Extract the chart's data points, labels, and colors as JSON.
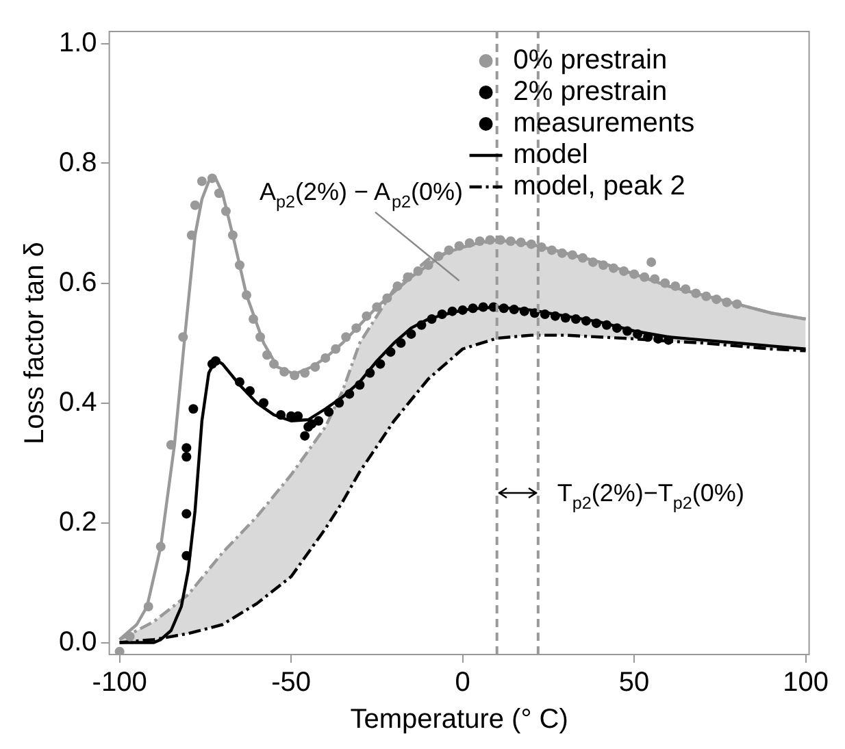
{
  "chart_data": {
    "type": "scatter",
    "xlabel": "Temperature (° C)",
    "ylabel": "Loss factor tan δ",
    "xlim": [
      -103,
      101
    ],
    "xticks": [
      -100,
      -50,
      0,
      50,
      100
    ],
    "ylim": [
      -0.02,
      1.02
    ],
    "yticks": [
      {
        "value": 0,
        "label": "0.0"
      },
      0.2,
      0.4,
      0.6,
      0.8,
      {
        "value": 1,
        "label": "1.0"
      }
    ],
    "grid": false,
    "legend": "top right",
    "series": [
      {
        "name": "0% prestrain",
        "marker": "circle",
        "color": "#999999",
        "x": [
          -100,
          -97,
          -91.6,
          -88,
          -85,
          -81.5,
          -79,
          -78,
          -76,
          -73,
          -71,
          -69,
          -67,
          -65,
          -63,
          -61,
          -59,
          -57,
          -55,
          -52,
          -49,
          -46,
          -43,
          -40,
          -37,
          -34,
          -31,
          -28,
          -25,
          -22,
          -19,
          -16,
          -13,
          -10,
          -7,
          -4,
          -1,
          2,
          5,
          8,
          11,
          14,
          17,
          20,
          23,
          26,
          29,
          32,
          35,
          38,
          41,
          44,
          47,
          50,
          53,
          55,
          56,
          59,
          62,
          65,
          68,
          71,
          74,
          77,
          80
        ],
        "values": [
          -0.015,
          0.01,
          0.06,
          0.16,
          0.33,
          0.51,
          0.68,
          0.73,
          0.77,
          0.775,
          0.75,
          0.72,
          0.68,
          0.63,
          0.58,
          0.54,
          0.51,
          0.48,
          0.465,
          0.452,
          0.446,
          0.45,
          0.46,
          0.475,
          0.49,
          0.51,
          0.525,
          0.545,
          0.56,
          0.575,
          0.595,
          0.61,
          0.62,
          0.63,
          0.645,
          0.655,
          0.662,
          0.667,
          0.67,
          0.672,
          0.672,
          0.67,
          0.668,
          0.665,
          0.66,
          0.655,
          0.65,
          0.647,
          0.642,
          0.635,
          0.63,
          0.625,
          0.62,
          0.615,
          0.61,
          0.635,
          0.607,
          0.6,
          0.595,
          0.59,
          0.583,
          0.578,
          0.573,
          0.568,
          0.565
        ]
      },
      {
        "name": "2% prestrain",
        "marker": "circle",
        "color": "#000000",
        "x": [
          -80.5,
          -80.5,
          -80.5,
          -80.5,
          -78.5,
          -73,
          -72,
          -65,
          -62,
          -58,
          -53,
          -50,
          -48,
          -46,
          -45,
          -44,
          -42,
          -39,
          -36,
          -33,
          -30,
          -27,
          -24,
          -21,
          -18,
          -15,
          -12,
          -9,
          -6,
          -3,
          0,
          3,
          6,
          9,
          12,
          15,
          18,
          21,
          24,
          27,
          30,
          33,
          36,
          39,
          42,
          45,
          48,
          51,
          54,
          57,
          60
        ],
        "values": [
          0.145,
          0.215,
          0.31,
          0.325,
          0.39,
          0.465,
          0.47,
          0.435,
          0.42,
          0.4,
          0.38,
          0.378,
          0.378,
          0.345,
          0.36,
          0.365,
          0.37,
          0.385,
          0.4,
          0.415,
          0.43,
          0.45,
          0.465,
          0.485,
          0.5,
          0.515,
          0.53,
          0.54,
          0.548,
          0.553,
          0.555,
          0.558,
          0.56,
          0.56,
          0.558,
          0.556,
          0.553,
          0.55,
          0.548,
          0.545,
          0.542,
          0.54,
          0.537,
          0.533,
          0.53,
          0.525,
          0.52,
          0.515,
          0.51,
          0.507,
          0.505
        ]
      },
      {
        "type": "line",
        "marker": "none",
        "line_style": "solid",
        "color": "#999999",
        "x": [
          -100,
          -95,
          -92,
          -88,
          -84,
          -81,
          -78,
          -76,
          -74,
          -72,
          -70,
          -67,
          -63,
          -58,
          -54,
          -49,
          -44,
          -40,
          -35,
          -30,
          -25,
          -20,
          -15,
          -10,
          -5,
          0,
          5,
          10,
          20,
          30,
          40,
          50,
          60,
          70,
          80,
          90,
          100
        ],
        "values": [
          0.005,
          0.03,
          0.06,
          0.16,
          0.33,
          0.51,
          0.68,
          0.74,
          0.77,
          0.775,
          0.75,
          0.68,
          0.58,
          0.5,
          0.46,
          0.448,
          0.46,
          0.475,
          0.5,
          0.53,
          0.56,
          0.585,
          0.61,
          0.63,
          0.65,
          0.66,
          0.668,
          0.672,
          0.665,
          0.65,
          0.635,
          0.615,
          0.595,
          0.58,
          0.565,
          0.55,
          0.54
        ]
      },
      {
        "name": "model",
        "type": "line",
        "marker": "none",
        "line_style": "solid",
        "color": "#000000",
        "x": [
          -100,
          -90,
          -88,
          -85,
          -82,
          -80,
          -78,
          -76,
          -74,
          -72,
          -70,
          -65,
          -60,
          -55,
          -50,
          -45,
          -40,
          -35,
          -30,
          -25,
          -20,
          -15,
          -10,
          -5,
          0,
          5,
          10,
          20,
          30,
          40,
          50,
          60,
          70,
          80,
          90,
          100
        ],
        "values": [
          0,
          0,
          0.005,
          0.02,
          0.06,
          0.12,
          0.22,
          0.37,
          0.45,
          0.472,
          0.465,
          0.43,
          0.4,
          0.38,
          0.37,
          0.372,
          0.39,
          0.41,
          0.435,
          0.47,
          0.5,
          0.525,
          0.54,
          0.548,
          0.555,
          0.558,
          0.56,
          0.555,
          0.545,
          0.535,
          0.52,
          0.51,
          0.505,
          0.5,
          0.495,
          0.49
        ]
      },
      {
        "type": "line",
        "marker": "none",
        "line_style": "dashed",
        "color": "#999999",
        "x": [
          -100,
          -90,
          -80,
          -70,
          -60,
          -50,
          -40,
          -35,
          -30,
          -20,
          -10,
          0,
          10,
          20,
          30,
          40,
          50,
          60,
          70,
          80,
          90,
          100
        ],
        "values": [
          0.005,
          0.035,
          0.08,
          0.15,
          0.21,
          0.28,
          0.36,
          0.42,
          0.5,
          0.59,
          0.64,
          0.66,
          0.672,
          0.665,
          0.65,
          0.635,
          0.615,
          0.595,
          0.58,
          0.565,
          0.55,
          0.54
        ],
        "lower": [
          0,
          0.005,
          0.015,
          0.03,
          0.065,
          0.11,
          0.19,
          0.235,
          0.285,
          0.37,
          0.44,
          0.49,
          0.508,
          0.513,
          0.513,
          0.51,
          0.507,
          0.503,
          0.5,
          0.495,
          0.49,
          0.487
        ],
        "upper": [
          0.005,
          0.035,
          0.08,
          0.15,
          0.21,
          0.28,
          0.36,
          0.42,
          0.5,
          0.59,
          0.64,
          0.66,
          0.672,
          0.665,
          0.65,
          0.635,
          0.615,
          0.595,
          0.58,
          0.565,
          0.55,
          0.54
        ]
      },
      {
        "name": "model, peak 2",
        "type": "line",
        "marker": "none",
        "line_style": "dashed",
        "color": "#000000",
        "x": [
          -100,
          -90,
          -80,
          -70,
          -60,
          -50,
          -40,
          -35,
          -30,
          -20,
          -10,
          0,
          10,
          20,
          30,
          40,
          50,
          60,
          70,
          80,
          90,
          100
        ],
        "values": [
          0,
          0.005,
          0.015,
          0.03,
          0.065,
          0.11,
          0.19,
          0.235,
          0.285,
          0.37,
          0.44,
          0.49,
          0.508,
          0.513,
          0.513,
          0.51,
          0.507,
          0.503,
          0.5,
          0.495,
          0.49,
          0.487
        ]
      }
    ],
    "ref_lines": [
      {
        "axis": "x",
        "value": 10,
        "color": "#999999",
        "line_style": "dashed"
      },
      {
        "axis": "x",
        "value": 22,
        "color": "#999999",
        "line_style": "dashed"
      }
    ],
    "annotations": [
      "measurements",
      "A$_{p2}$(2%) − A$_{p2}$(0%)",
      {
        "text": "T$_{p2}$(2%)−T$_{p2}$(0%)",
        "x": 22,
        "y": 0.25
      }
    ]
  }
}
